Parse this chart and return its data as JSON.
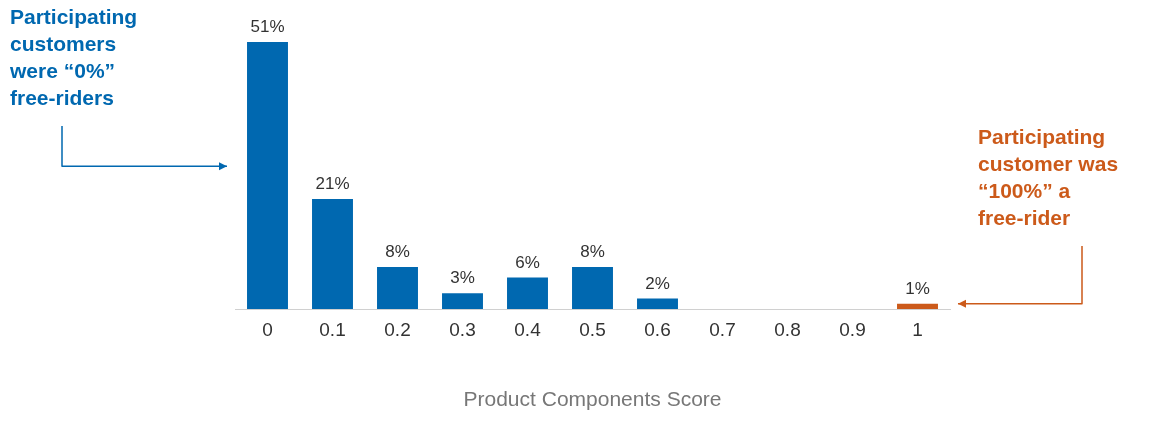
{
  "chart_data": {
    "type": "bar",
    "categories": [
      "0",
      "0.1",
      "0.2",
      "0.3",
      "0.4",
      "0.5",
      "0.6",
      "0.7",
      "0.8",
      "0.9",
      "1"
    ],
    "values": [
      51,
      21,
      8,
      3,
      6,
      8,
      2,
      0,
      0,
      0,
      1
    ],
    "colors": [
      "#0068b0",
      "#0068b0",
      "#0068b0",
      "#0068b0",
      "#0068b0",
      "#0068b0",
      "#0068b0",
      "#0068b0",
      "#0068b0",
      "#0068b0",
      "#cc5a1a"
    ],
    "value_labels": [
      "51%",
      "21%",
      "8%",
      "3%",
      "6%",
      "8%",
      "2%",
      null,
      null,
      null,
      "1%"
    ],
    "xlabel": "Product Components Score",
    "annotations": [
      "Participating customers were “0%” free-riders",
      "Participating customer was “100%” a free-rider"
    ],
    "grid": false,
    "legend": false
  }
}
